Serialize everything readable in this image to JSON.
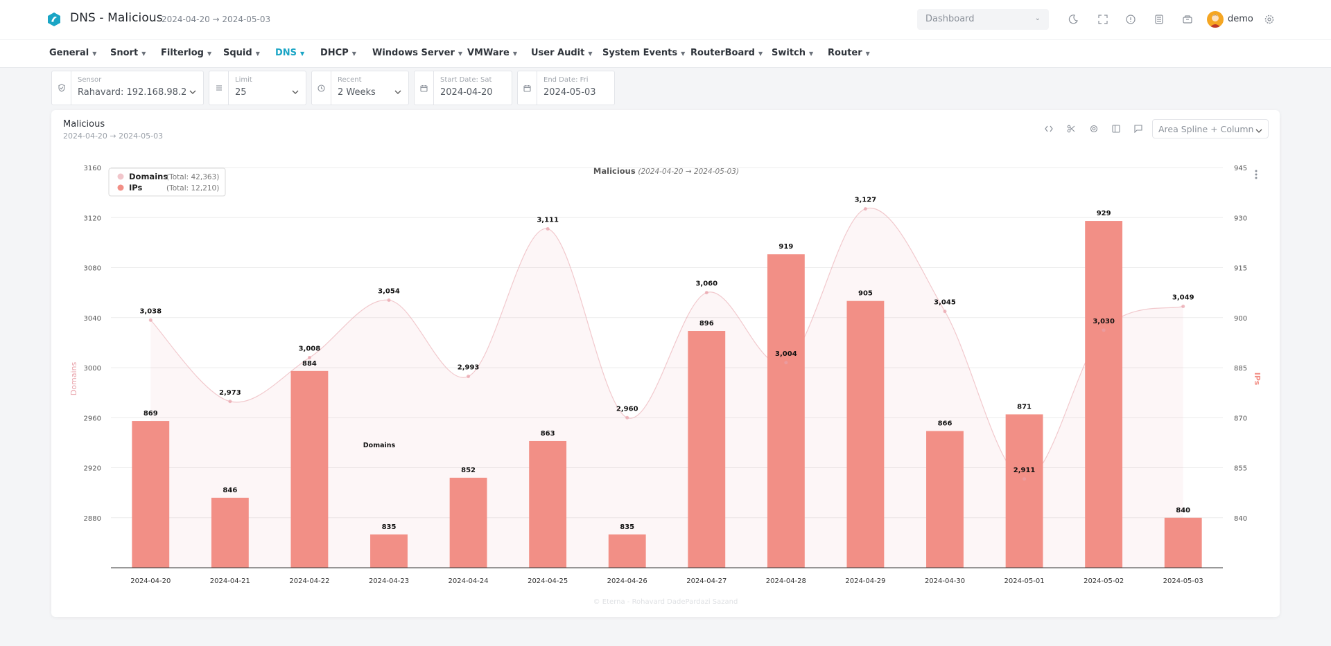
{
  "header": {
    "app_title": "DNS - Malicious",
    "date_range": "2024-04-20 → 2024-05-03",
    "dashboard_select": "Dashboard",
    "user_name": "demo"
  },
  "nav": {
    "items": [
      {
        "label": "General"
      },
      {
        "label": "Snort"
      },
      {
        "label": "Filterlog"
      },
      {
        "label": "Squid"
      },
      {
        "label": "DNS"
      },
      {
        "label": "DHCP"
      },
      {
        "label": "Windows Server"
      },
      {
        "label": "VMWare"
      },
      {
        "label": "User Audit"
      },
      {
        "label": "System Events"
      },
      {
        "label": "RouterBoard"
      },
      {
        "label": "Switch"
      },
      {
        "label": "Router"
      }
    ],
    "active": "DNS"
  },
  "filters": {
    "sensor": {
      "label": "Sensor",
      "value": "Rahavard: 192.168.98.2"
    },
    "limit": {
      "label": "Limit",
      "value": "25"
    },
    "recent": {
      "label": "Recent",
      "value": "2 Weeks"
    },
    "start_date": {
      "label": "Start Date: Sat",
      "value": "2024-04-20"
    },
    "end_date": {
      "label": "End Date: Fri",
      "value": "2024-05-03"
    }
  },
  "card": {
    "title": "Malicious",
    "subtitle": "2024-04-20 → 2024-05-03",
    "chart_type": "Area Spline + Column",
    "credit": "© Eterna - Rohavard DadePardazi Sazand"
  },
  "colors": {
    "accent": "#1aa5c5",
    "domains": "#e8a0a8",
    "ips": "#f28f86"
  },
  "chart_data": {
    "type": "bar",
    "title": "Malicious",
    "subtitle": "(2024-04-20 → 2024-05-03)",
    "categories": [
      "2024-04-20",
      "2024-04-21",
      "2024-04-22",
      "2024-04-23",
      "2024-04-24",
      "2024-04-25",
      "2024-04-26",
      "2024-04-27",
      "2024-04-28",
      "2024-04-29",
      "2024-04-30",
      "2024-05-01",
      "2024-05-02",
      "2024-05-03"
    ],
    "series": [
      {
        "name": "Domains",
        "chart": "area-spline",
        "axis": "left",
        "total": "(Total: 42,363)",
        "values": [
          3038,
          2973,
          3008,
          3054,
          2993,
          3111,
          2960,
          3060,
          3004,
          3127,
          3045,
          2911,
          3030,
          3049
        ],
        "labels": [
          "3,038",
          "2,973",
          "3,008",
          "3,054",
          "2,993",
          "3,111",
          "2,960",
          "3,060",
          "3,004",
          "3,127",
          "3,045",
          "2,911",
          "3,030",
          "3,049"
        ]
      },
      {
        "name": "IPs",
        "chart": "column",
        "axis": "right",
        "total": "(Total: 12,210)",
        "values": [
          869,
          846,
          884,
          835,
          852,
          863,
          835,
          896,
          919,
          905,
          866,
          871,
          929,
          840
        ],
        "labels": [
          "869",
          "846",
          "884",
          "835",
          "852",
          "863",
          "835",
          "896",
          "919",
          "905",
          "866",
          "871",
          "929",
          "840"
        ]
      }
    ],
    "y_left": {
      "label": "Domains",
      "min": 2840,
      "max": 3160,
      "ticks": [
        "2880",
        "2920",
        "2960",
        "3000",
        "3040",
        "3080",
        "3120",
        "3160"
      ]
    },
    "y_right": {
      "label": "IPs",
      "min": 825,
      "max": 945,
      "ticks": [
        "840",
        "855",
        "870",
        "885",
        "900",
        "915",
        "930",
        "945"
      ]
    },
    "annotation": "Domains",
    "legend_position": "top-left",
    "grid": true
  }
}
